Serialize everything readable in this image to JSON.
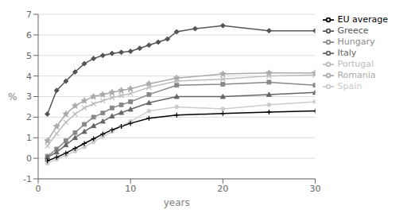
{
  "chart_data": {
    "type": "line",
    "title": "",
    "xlabel": "years",
    "ylabel": "%",
    "xlim": [
      0,
      30
    ],
    "ylim": [
      -1,
      7
    ],
    "xticks": [
      0,
      10,
      20,
      30
    ],
    "yticks": [
      -1,
      0,
      1,
      2,
      3,
      4,
      5,
      6,
      7
    ],
    "grid": "y",
    "legend": "right",
    "series": [
      {
        "name": "Greece",
        "color": "#555555",
        "marker": "diamond",
        "x": [
          1,
          2,
          3,
          4,
          5,
          6,
          7,
          8,
          9,
          10,
          11,
          12,
          13,
          14,
          15,
          17,
          20,
          25,
          30
        ],
        "values": [
          2.15,
          3.3,
          3.75,
          4.2,
          4.6,
          4.85,
          5.0,
          5.1,
          5.15,
          5.2,
          5.35,
          5.5,
          5.65,
          5.8,
          6.15,
          6.3,
          6.45,
          6.2,
          6.2
        ]
      },
      {
        "name": "Romania",
        "color": "#aaaaaa",
        "marker": "star",
        "x": [
          1,
          2,
          3,
          4,
          5,
          6,
          7,
          8,
          9,
          10,
          12,
          15,
          20,
          25,
          30
        ],
        "values": [
          0.85,
          1.55,
          2.15,
          2.55,
          2.8,
          3.0,
          3.1,
          3.2,
          3.3,
          3.38,
          3.62,
          3.9,
          4.1,
          4.15,
          4.15
        ]
      },
      {
        "name": "Portugal",
        "color": "#bbbbbb",
        "marker": "x",
        "x": [
          1,
          2,
          3,
          4,
          5,
          6,
          7,
          8,
          9,
          10,
          12,
          15,
          20,
          25,
          30
        ],
        "values": [
          0.6,
          1.2,
          1.75,
          2.15,
          2.45,
          2.65,
          2.8,
          2.95,
          3.05,
          3.15,
          3.45,
          3.75,
          3.85,
          4.0,
          4.05
        ]
      },
      {
        "name": "Hungary",
        "color": "#888888",
        "marker": "square",
        "x": [
          1,
          2,
          3,
          4,
          5,
          6,
          7,
          8,
          9,
          10,
          12,
          15,
          20,
          25,
          30
        ],
        "values": [
          0.1,
          0.45,
          0.85,
          1.25,
          1.65,
          2.0,
          2.2,
          2.45,
          2.6,
          2.75,
          3.1,
          3.55,
          3.6,
          3.7,
          3.55
        ]
      },
      {
        "name": "Italy",
        "color": "#666666",
        "marker": "triangle",
        "x": [
          1,
          2,
          3,
          4,
          5,
          6,
          7,
          8,
          9,
          10,
          12,
          15,
          20,
          25,
          30
        ],
        "values": [
          0.05,
          0.3,
          0.65,
          1.0,
          1.3,
          1.58,
          1.8,
          2.05,
          2.22,
          2.38,
          2.7,
          3.0,
          3.0,
          3.1,
          3.2
        ]
      },
      {
        "name": "Spain",
        "color": "#cccccc",
        "marker": "circle",
        "x": [
          1,
          2,
          3,
          4,
          5,
          6,
          7,
          8,
          9,
          10,
          12,
          15,
          20,
          25,
          30
        ],
        "values": [
          -0.25,
          -0.05,
          0.15,
          0.35,
          0.55,
          0.8,
          1.05,
          1.3,
          1.55,
          1.8,
          2.3,
          2.5,
          2.4,
          2.6,
          2.75
        ]
      },
      {
        "name": "EU average",
        "color": "#000000",
        "marker": "plus",
        "x": [
          1,
          2,
          3,
          4,
          5,
          6,
          7,
          8,
          9,
          10,
          12,
          15,
          20,
          25,
          30
        ],
        "values": [
          -0.12,
          0.05,
          0.25,
          0.48,
          0.72,
          0.95,
          1.18,
          1.38,
          1.55,
          1.7,
          1.95,
          2.1,
          2.18,
          2.25,
          2.3
        ]
      }
    ]
  }
}
